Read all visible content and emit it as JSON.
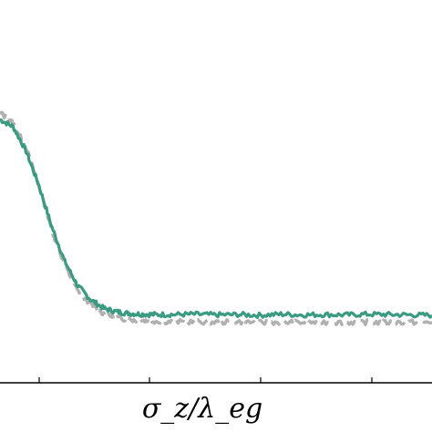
{
  "chart_data": {
    "type": "line",
    "title": "",
    "xlabel": "σ_z/λ_eg",
    "ylabel": "",
    "x_tick_labels": [],
    "y_tick_labels": [],
    "grid": false,
    "legend": "none",
    "xlim": [
      0,
      100
    ],
    "ylim": [
      0,
      100
    ],
    "series": [
      {
        "color": "#3a9a82",
        "style": "solid",
        "x": [
          0,
          3,
          6,
          9,
          12,
          15,
          18,
          21,
          24,
          27,
          30,
          33,
          36,
          40,
          45,
          50,
          55,
          60,
          65,
          70,
          75,
          80,
          85,
          90,
          95,
          100
        ],
        "y": [
          76,
          74,
          67,
          57,
          45,
          35,
          28,
          24,
          21.5,
          20.5,
          20,
          19.8,
          19.7,
          19.7,
          19.8,
          19.6,
          19.7,
          19.5,
          19.8,
          19.6,
          19.7,
          19.6,
          19.8,
          19.7,
          19.6,
          19.5
        ]
      },
      {
        "color": "#b0b0b0",
        "style": "dashed",
        "x": [
          0,
          3,
          6,
          9,
          12,
          15,
          18,
          21,
          24,
          27,
          30,
          33,
          36,
          40,
          45,
          50,
          55,
          60,
          65,
          70,
          75,
          80,
          85,
          90,
          95,
          100
        ],
        "y": [
          78,
          75,
          68,
          57,
          44,
          34,
          26.5,
          22.5,
          20,
          18.8,
          18.2,
          18,
          17.8,
          17.6,
          17.6,
          17.5,
          17.6,
          17.4,
          17.5,
          17.4,
          17.5,
          17.4,
          17.5,
          17.4,
          17.5,
          17.4
        ]
      }
    ]
  }
}
